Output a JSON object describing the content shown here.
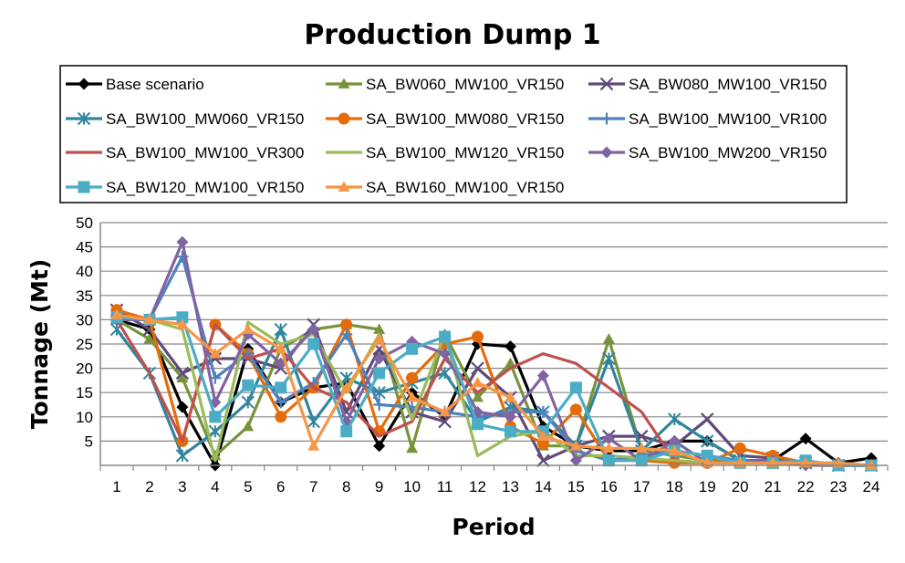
{
  "chart_data": {
    "type": "line",
    "title": "Production Dump 1",
    "xlabel": "Period",
    "ylabel": "Tonnage (Mt)",
    "ylim": [
      0,
      50
    ],
    "yticks": [
      5,
      10,
      15,
      20,
      25,
      30,
      35,
      40,
      45,
      50
    ],
    "grid": true,
    "legend_position": "top",
    "categories": [
      "1",
      "2",
      "3",
      "4",
      "5",
      "6",
      "7",
      "8",
      "9",
      "10",
      "11",
      "12",
      "13",
      "14",
      "15",
      "16",
      "17",
      "18",
      "19",
      "20",
      "21",
      "22",
      "23",
      "24"
    ],
    "series": [
      {
        "name": "Base scenario",
        "color": "#000000",
        "marker": "diamond",
        "values": [
          30,
          28,
          12,
          0,
          24,
          13,
          16,
          17,
          4,
          15,
          10,
          25,
          24.5,
          8,
          4,
          3,
          3,
          5,
          5,
          1,
          1,
          5.5,
          0.5,
          1.5
        ]
      },
      {
        "name": "SA_BW060_MW100_VR150",
        "color": "#77933C",
        "marker": "triangle",
        "values": [
          30,
          26,
          18,
          2,
          8,
          24,
          28,
          29,
          28,
          3.5,
          27,
          14,
          21,
          4,
          4,
          26,
          3,
          2,
          1,
          0.5,
          0.5,
          0.5,
          0,
          0
        ]
      },
      {
        "name": "SA_BW080_MW100_VR150",
        "color": "#604A7B",
        "marker": "x",
        "values": [
          32,
          28,
          19,
          22,
          22,
          20,
          29,
          11,
          24,
          11,
          9,
          20,
          14,
          1,
          4,
          6,
          6,
          4,
          9.5,
          2,
          1.5,
          0.5,
          0,
          0
        ]
      },
      {
        "name": "SA_BW100_MW060_VR150",
        "color": "#31859C",
        "marker": "asterisk",
        "values": [
          28,
          19,
          2,
          7,
          13,
          28,
          9,
          18,
          15,
          17,
          19,
          9,
          12,
          11,
          4,
          22,
          3,
          9.5,
          5,
          1,
          0.5,
          0.5,
          0,
          0
        ]
      },
      {
        "name": "SA_BW100_MW080_VR150",
        "color": "#E46C0A",
        "marker": "circle",
        "values": [
          32,
          30,
          5,
          29,
          23,
          10,
          16,
          29,
          7,
          18,
          25,
          26.5,
          8,
          4.5,
          11.5,
          1,
          1,
          0.5,
          0.5,
          3.5,
          2,
          0.5,
          0,
          0
        ]
      },
      {
        "name": "SA_BW100_MW100_VR100",
        "color": "#4F81BD",
        "marker": "plus",
        "values": [
          30,
          30,
          43,
          18,
          23,
          13,
          17,
          27,
          12.5,
          12,
          11,
          10,
          11,
          11,
          3,
          1,
          2,
          3,
          2,
          1,
          1,
          0.5,
          0.5,
          0
        ]
      },
      {
        "name": "SA_BW100_MW100_VR300",
        "color": "#C0504D",
        "marker": "none",
        "values": [
          30,
          19,
          5,
          29,
          22,
          24,
          16,
          13,
          6,
          9,
          22,
          15,
          20,
          23,
          21,
          16,
          11,
          1,
          0.5,
          0.5,
          0.5,
          0.5,
          0,
          0
        ]
      },
      {
        "name": "SA_BW100_MW120_VR150",
        "color": "#9BBB59",
        "marker": "none",
        "values": [
          30,
          30,
          28,
          1,
          29.5,
          25,
          27,
          15,
          27,
          9.5,
          27,
          2,
          6,
          7,
          2,
          2,
          1.5,
          1,
          0.5,
          0.5,
          0.5,
          0,
          0,
          0
        ]
      },
      {
        "name": "SA_BW100_MW200_VR150",
        "color": "#8064A2",
        "marker": "diamond",
        "values": [
          30,
          30,
          46,
          13,
          27,
          21,
          28,
          9,
          22,
          25.5,
          23,
          11,
          10,
          18.5,
          1,
          5.5,
          1,
          5,
          0.5,
          0.5,
          1,
          0,
          0,
          0
        ]
      },
      {
        "name": "SA_BW120_MW100_VR150",
        "color": "#4BACC6",
        "marker": "square",
        "values": [
          30.5,
          30,
          30.5,
          10,
          16.5,
          16,
          25,
          7,
          19,
          24,
          26.5,
          8.5,
          7,
          7,
          16,
          1,
          1,
          3,
          2,
          0.5,
          0.5,
          1,
          0,
          0
        ]
      },
      {
        "name": "SA_BW160_MW100_VR150",
        "color": "#F79646",
        "marker": "triangle",
        "values": [
          31,
          30,
          29,
          23,
          28,
          24,
          4,
          16,
          26,
          14,
          11,
          17,
          14,
          6,
          4,
          3.5,
          3.5,
          3,
          0.5,
          0.5,
          0.5,
          0.5,
          0.5,
          0
        ]
      }
    ]
  }
}
